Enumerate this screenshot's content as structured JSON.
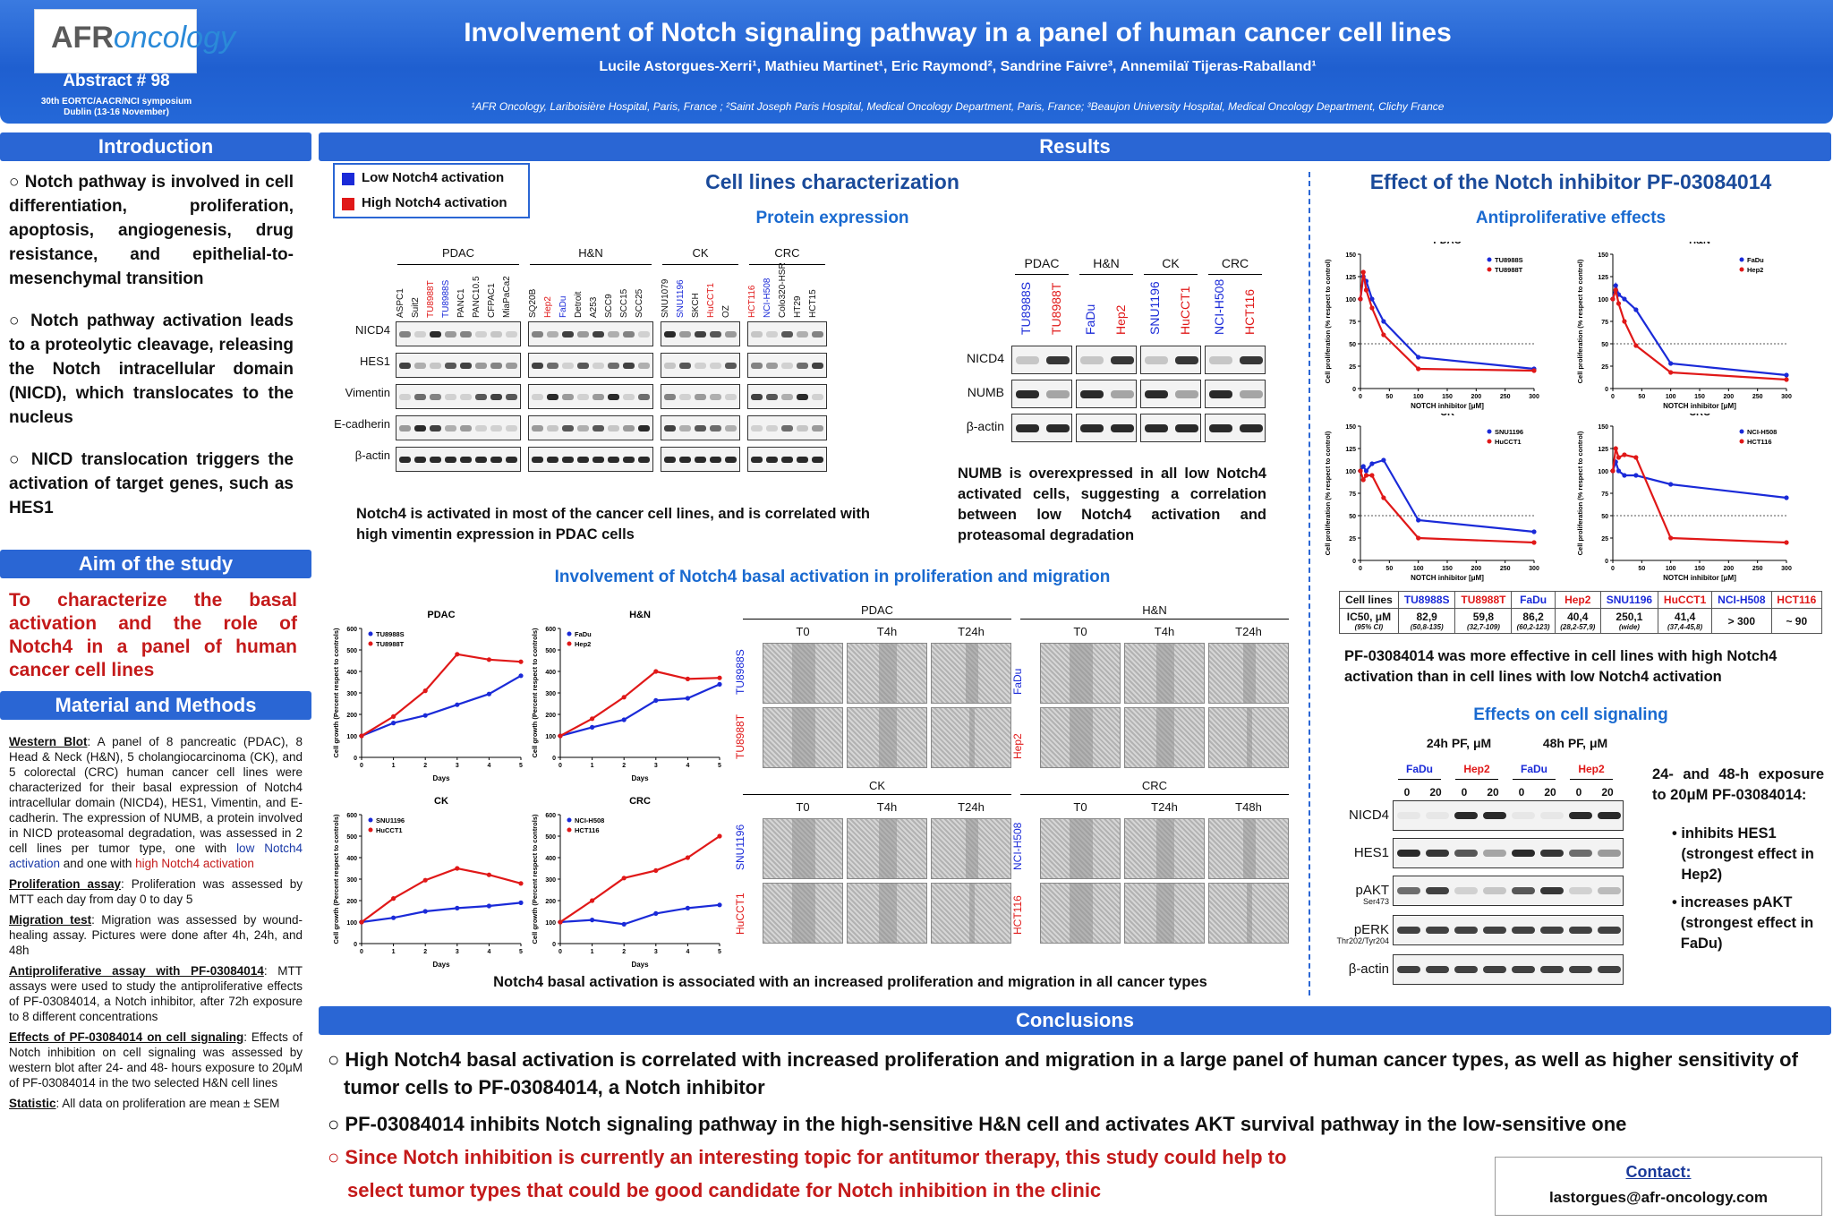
{
  "header": {
    "logo_prefix": "AFR",
    "logo_suffix": "oncology",
    "abstract": "Abstract # 98",
    "symposium1": "30th EORTC/AACR/NCI symposium",
    "symposium2": "Dublin (13-16 November)",
    "title": "Involvement of Notch signaling pathway in a panel of human cancer cell lines",
    "authors": "Lucile Astorgues-Xerri¹, Mathieu Martinet¹, Eric Raymond², Sandrine Faivre³, Annemilaï Tijeras-Raballand¹",
    "affiliations": "¹AFR Oncology, Lariboisière Hospital, Paris, France ; ²Saint Joseph Paris Hospital, Medical Oncology Department, Paris, France;  ³Beaujon University Hospital, Medical Oncology Department, Clichy France"
  },
  "intro": {
    "heading": "Introduction",
    "bullets": [
      "○ Notch pathway is involved in cell differentiation, proliferation, apoptosis, angiogenesis, drug resistance, and epithelial-to-mesenchymal transition",
      "○ Notch pathway activation leads to a proteolytic cleavage, releasing the Notch intracellular domain (NICD), which translocates to the nucleus",
      "○ NICD translocation triggers the activation of target genes, such as HES1"
    ]
  },
  "aim": {
    "heading": "Aim of the study",
    "text": "To characterize the basal activation and the role of Notch4 in a panel of human cancer cell lines"
  },
  "methods": {
    "heading": "Material and Methods",
    "wb_title": "Western Blot",
    "wb_text": ": A panel of 8 pancreatic (PDAC), 8 Head & Neck (H&N), 5 cholangiocarcinoma (CK), and 5 colorectal (CRC) human cancer cell lines were characterized for their basal expression of Notch4 intracellular domain (NICD4), HES1, Vimentin, and E-cadherin. The expression of NUMB, a protein involved in NICD proteasomal degradation, was assessed in 2 cell lines per tumor type, one with ",
    "wb_low": "low Notch4 activation",
    "wb_and": " and one with ",
    "wb_high": "high Notch4 activation",
    "prolif_title": "Proliferation assay",
    "prolif_text": ": Proliferation was assessed by MTT each day from day 0 to day 5",
    "mig_title": "Migration test",
    "mig_text": ": Migration was assessed by wound-healing assay. Pictures were done after 4h, 24h, and 48h",
    "anti_title": "Antiproliferative assay with PF-03084014",
    "anti_text": ": MTT assays were used to study the antiproliferative effects of PF-03084014, a Notch inhibitor, after 72h exposure to 8 different concentrations",
    "sig_title": "Effects of PF-03084014 on cell signaling",
    "sig_text": ": Effects of Notch inhibition on cell signaling was assessed by western blot after 24- and 48- hours exposure to 20μM of PF-03084014 in the two selected H&N cell lines",
    "stat_title": "Statistic",
    "stat_text": ": All data on proliferation are mean ± SEM"
  },
  "results": {
    "heading": "Results",
    "legend_low": "Low Notch4 activation",
    "legend_high": "High Notch4 activation",
    "char_title": "Cell lines characterization",
    "protein_title": "Protein expression",
    "blot_groups": [
      "PDAC",
      "H&N",
      "CK",
      "CRC"
    ],
    "blot_lines": {
      "PDAC": [
        "ASPC1",
        "Suit2",
        "TU8988T",
        "TU8988S",
        "PANC1",
        "PANC10.5",
        "CFPAC1",
        "MiaPaCa2"
      ],
      "HN": [
        "SQ20B",
        "Hep2",
        "FaDu",
        "Detroit",
        "A253",
        "SCC9",
        "SCC15",
        "SCC25"
      ],
      "CK": [
        "SNU1079",
        "SNU1196",
        "SKCH",
        "HuCCT1",
        "OZ"
      ],
      "CRC": [
        "HCT116",
        "NCI-H508",
        "Colo320-HSR",
        "HT29",
        "HCT15"
      ]
    },
    "blot_rows": [
      "NICD4",
      "HES1",
      "Vimentin",
      "E-cadherin",
      "β-actin"
    ],
    "blot_caption": "Notch4 is activated in most of the cancer cell lines, and is correlated with high vimentin expression in PDAC cells",
    "numb_lines": [
      "TU8988S",
      "TU8988T",
      "FaDu",
      "Hep2",
      "SNU1196",
      "HuCCT1",
      "NCI-H508",
      "HCT116"
    ],
    "numb_rows": [
      "NICD4",
      "NUMB",
      "β-actin"
    ],
    "numb_caption": "NUMB is overexpressed in all low Notch4 activated cells, suggesting a correlation between low Notch4 activation and proteasomal degradation",
    "involve_title": "Involvement of Notch4 basal activation in proliferation and migration",
    "involve_caption": "Notch4 basal activation is associated with an increased proliferation and migration in all cancer types",
    "mig_panels": [
      {
        "title": "PDAC",
        "times": [
          "T0",
          "T4h",
          "T24h"
        ],
        "rows": [
          "TU8988S",
          "TU8988T"
        ]
      },
      {
        "title": "H&N",
        "times": [
          "T0",
          "T4h",
          "T24h"
        ],
        "rows": [
          "FaDu",
          "Hep2"
        ]
      },
      {
        "title": "CK",
        "times": [
          "T0",
          "T4h",
          "T24h"
        ],
        "rows": [
          "SNU1196",
          "HuCCT1"
        ]
      },
      {
        "title": "CRC",
        "times": [
          "T0",
          "T24h",
          "T48h"
        ],
        "rows": [
          "NCI-H508",
          "HCT116"
        ]
      }
    ],
    "inhib_title": "Effect of the Notch inhibitor PF-03084014",
    "antiprolif_title": "Antiproliferative effects",
    "ic_header": [
      "Cell lines",
      "TU8988S",
      "TU8988T",
      "FaDu",
      "Hep2",
      "SNU1196",
      "HuCCT1",
      "NCI-H508",
      "HCT116"
    ],
    "ic_label": "IC50, μM",
    "ic_ci": "(95% CI)",
    "ic_values": [
      "82,9",
      "59,8",
      "86,2",
      "40,4",
      "250,1",
      "41,4",
      "> 300",
      "~ 90"
    ],
    "ic_cis": [
      "(50,8-135)",
      "(32,7-109)",
      "(60,2-123)",
      "(28,2-57,9)",
      "(wide)",
      "(37,4-45,8)",
      "",
      ""
    ],
    "pf_caption": "PF-03084014 was more effective in cell lines with high Notch4 activation than in cell lines with low Notch4 activation",
    "signal_title": "Effects on cell signaling",
    "sig_24": "24h PF, μM",
    "sig_48": "48h PF, μM",
    "sig_lines": [
      "FaDu",
      "Hep2",
      "FaDu",
      "Hep2"
    ],
    "sig_doses": [
      "0",
      "20",
      "0",
      "20",
      "0",
      "20",
      "0",
      "20"
    ],
    "sig_rows": [
      "NICD4",
      "HES1",
      "pAKT",
      "pERK",
      "β-actin"
    ],
    "sig_sub": {
      "pAKT": "Ser473",
      "pERK": "Thr202/Tyr204"
    },
    "sig_note": "24- and 48-h exposure to 20μM PF-03084014:",
    "sig_b1": "inhibits HES1 (strongest effect in Hep2)",
    "sig_b2": "increases pAKT (strongest effect in FaDu)"
  },
  "conclusions": {
    "heading": "Conclusions",
    "c1": "○ High Notch4 basal activation is correlated with increased proliferation and migration in a large panel of human cancer types, as well as higher sensitivity of tumor cells to PF-03084014, a Notch inhibitor",
    "c2": "○ PF-03084014 inhibits Notch signaling pathway in the high-sensitive H&N cell and activates AKT survival pathway in the low-sensitive one",
    "c3a": "○ Since Notch inhibition is currently an interesting topic for antitumor therapy, this study could help to",
    "c3b": "select tumor types that could be good candidate for Notch inhibition in the clinic"
  },
  "contact": {
    "label": "Contact:",
    "email": "lastorgues@afr-oncology.com"
  },
  "colors": {
    "low": "#1a2ad8",
    "high": "#e01818",
    "bar": "#2a66d4"
  },
  "chart_data": [
    {
      "type": "line",
      "title": "PDAC",
      "xlabel": "Days",
      "ylabel": "Cell growth (Percent respect to controls)",
      "x": [
        0,
        1,
        2,
        3,
        4,
        5
      ],
      "ylim": [
        0,
        600
      ],
      "series": [
        {
          "name": "TU8988S",
          "values": [
            100,
            160,
            195,
            245,
            295,
            380
          ]
        },
        {
          "name": "TU8988T",
          "values": [
            100,
            190,
            310,
            480,
            455,
            445
          ]
        }
      ]
    },
    {
      "type": "line",
      "title": "H&N",
      "xlabel": "Days",
      "ylabel": "Cell growth (Percent respect to controls)",
      "x": [
        0,
        1,
        2,
        3,
        4,
        5
      ],
      "ylim": [
        0,
        600
      ],
      "series": [
        {
          "name": "FaDu",
          "values": [
            100,
            140,
            175,
            265,
            275,
            340
          ]
        },
        {
          "name": "Hep2",
          "values": [
            100,
            180,
            280,
            400,
            365,
            370
          ]
        }
      ]
    },
    {
      "type": "line",
      "title": "CK",
      "xlabel": "Days",
      "ylabel": "Cell growth (Percent respect to controls)",
      "x": [
        0,
        1,
        2,
        3,
        4,
        5
      ],
      "ylim": [
        0,
        600
      ],
      "series": [
        {
          "name": "SNU1196",
          "values": [
            100,
            120,
            150,
            165,
            175,
            190
          ]
        },
        {
          "name": "HuCCT1",
          "values": [
            100,
            210,
            295,
            350,
            320,
            280
          ]
        }
      ]
    },
    {
      "type": "line",
      "title": "CRC",
      "xlabel": "Days",
      "ylabel": "Cell growth (Percent respect to controls)",
      "x": [
        0,
        1,
        2,
        3,
        4,
        5
      ],
      "ylim": [
        0,
        600
      ],
      "series": [
        {
          "name": "NCI-H508",
          "values": [
            100,
            110,
            90,
            140,
            165,
            180
          ]
        },
        {
          "name": "HCT116",
          "values": [
            100,
            200,
            305,
            340,
            400,
            500
          ]
        }
      ]
    },
    {
      "type": "line",
      "title": "PDAC",
      "xlabel": "NOTCH inhibitor [μM]",
      "ylabel": "Cell proliferation (% respect to control)",
      "x": [
        0,
        5,
        10,
        20,
        40,
        100,
        300
      ],
      "ylim": [
        0,
        150
      ],
      "series": [
        {
          "name": "TU8988S",
          "values": [
            100,
            125,
            120,
            100,
            75,
            35,
            22
          ]
        },
        {
          "name": "TU8988T",
          "values": [
            100,
            130,
            110,
            90,
            60,
            22,
            20
          ]
        }
      ]
    },
    {
      "type": "line",
      "title": "H&N",
      "xlabel": "NOTCH inhibitor [μM]",
      "ylabel": "Cell proliferation (% respect to control)",
      "x": [
        0,
        5,
        10,
        20,
        40,
        100,
        300
      ],
      "ylim": [
        0,
        150
      ],
      "series": [
        {
          "name": "FaDu",
          "values": [
            100,
            115,
            105,
            100,
            88,
            28,
            15
          ]
        },
        {
          "name": "Hep2",
          "values": [
            100,
            110,
            95,
            75,
            48,
            18,
            10
          ]
        }
      ]
    },
    {
      "type": "line",
      "title": "CK",
      "xlabel": "NOTCH inhibitor [μM]",
      "ylabel": "Cell proliferation (% respect to control)",
      "x": [
        0,
        5,
        10,
        20,
        40,
        100,
        300
      ],
      "ylim": [
        0,
        150
      ],
      "series": [
        {
          "name": "SNU1196",
          "values": [
            100,
            105,
            100,
            108,
            112,
            45,
            32
          ]
        },
        {
          "name": "HuCCT1",
          "values": [
            100,
            90,
            95,
            95,
            70,
            25,
            20
          ]
        }
      ]
    },
    {
      "type": "line",
      "title": "CRC",
      "xlabel": "NOTCH inhibitor [μM]",
      "ylabel": "Cell proliferation (% respect to control)",
      "x": [
        0,
        5,
        10,
        20,
        40,
        100,
        300
      ],
      "ylim": [
        0,
        150
      ],
      "series": [
        {
          "name": "NCI-H508",
          "values": [
            100,
            110,
            100,
            95,
            95,
            85,
            70
          ]
        },
        {
          "name": "HCT116",
          "values": [
            100,
            125,
            115,
            118,
            115,
            25,
            20
          ]
        }
      ]
    }
  ]
}
